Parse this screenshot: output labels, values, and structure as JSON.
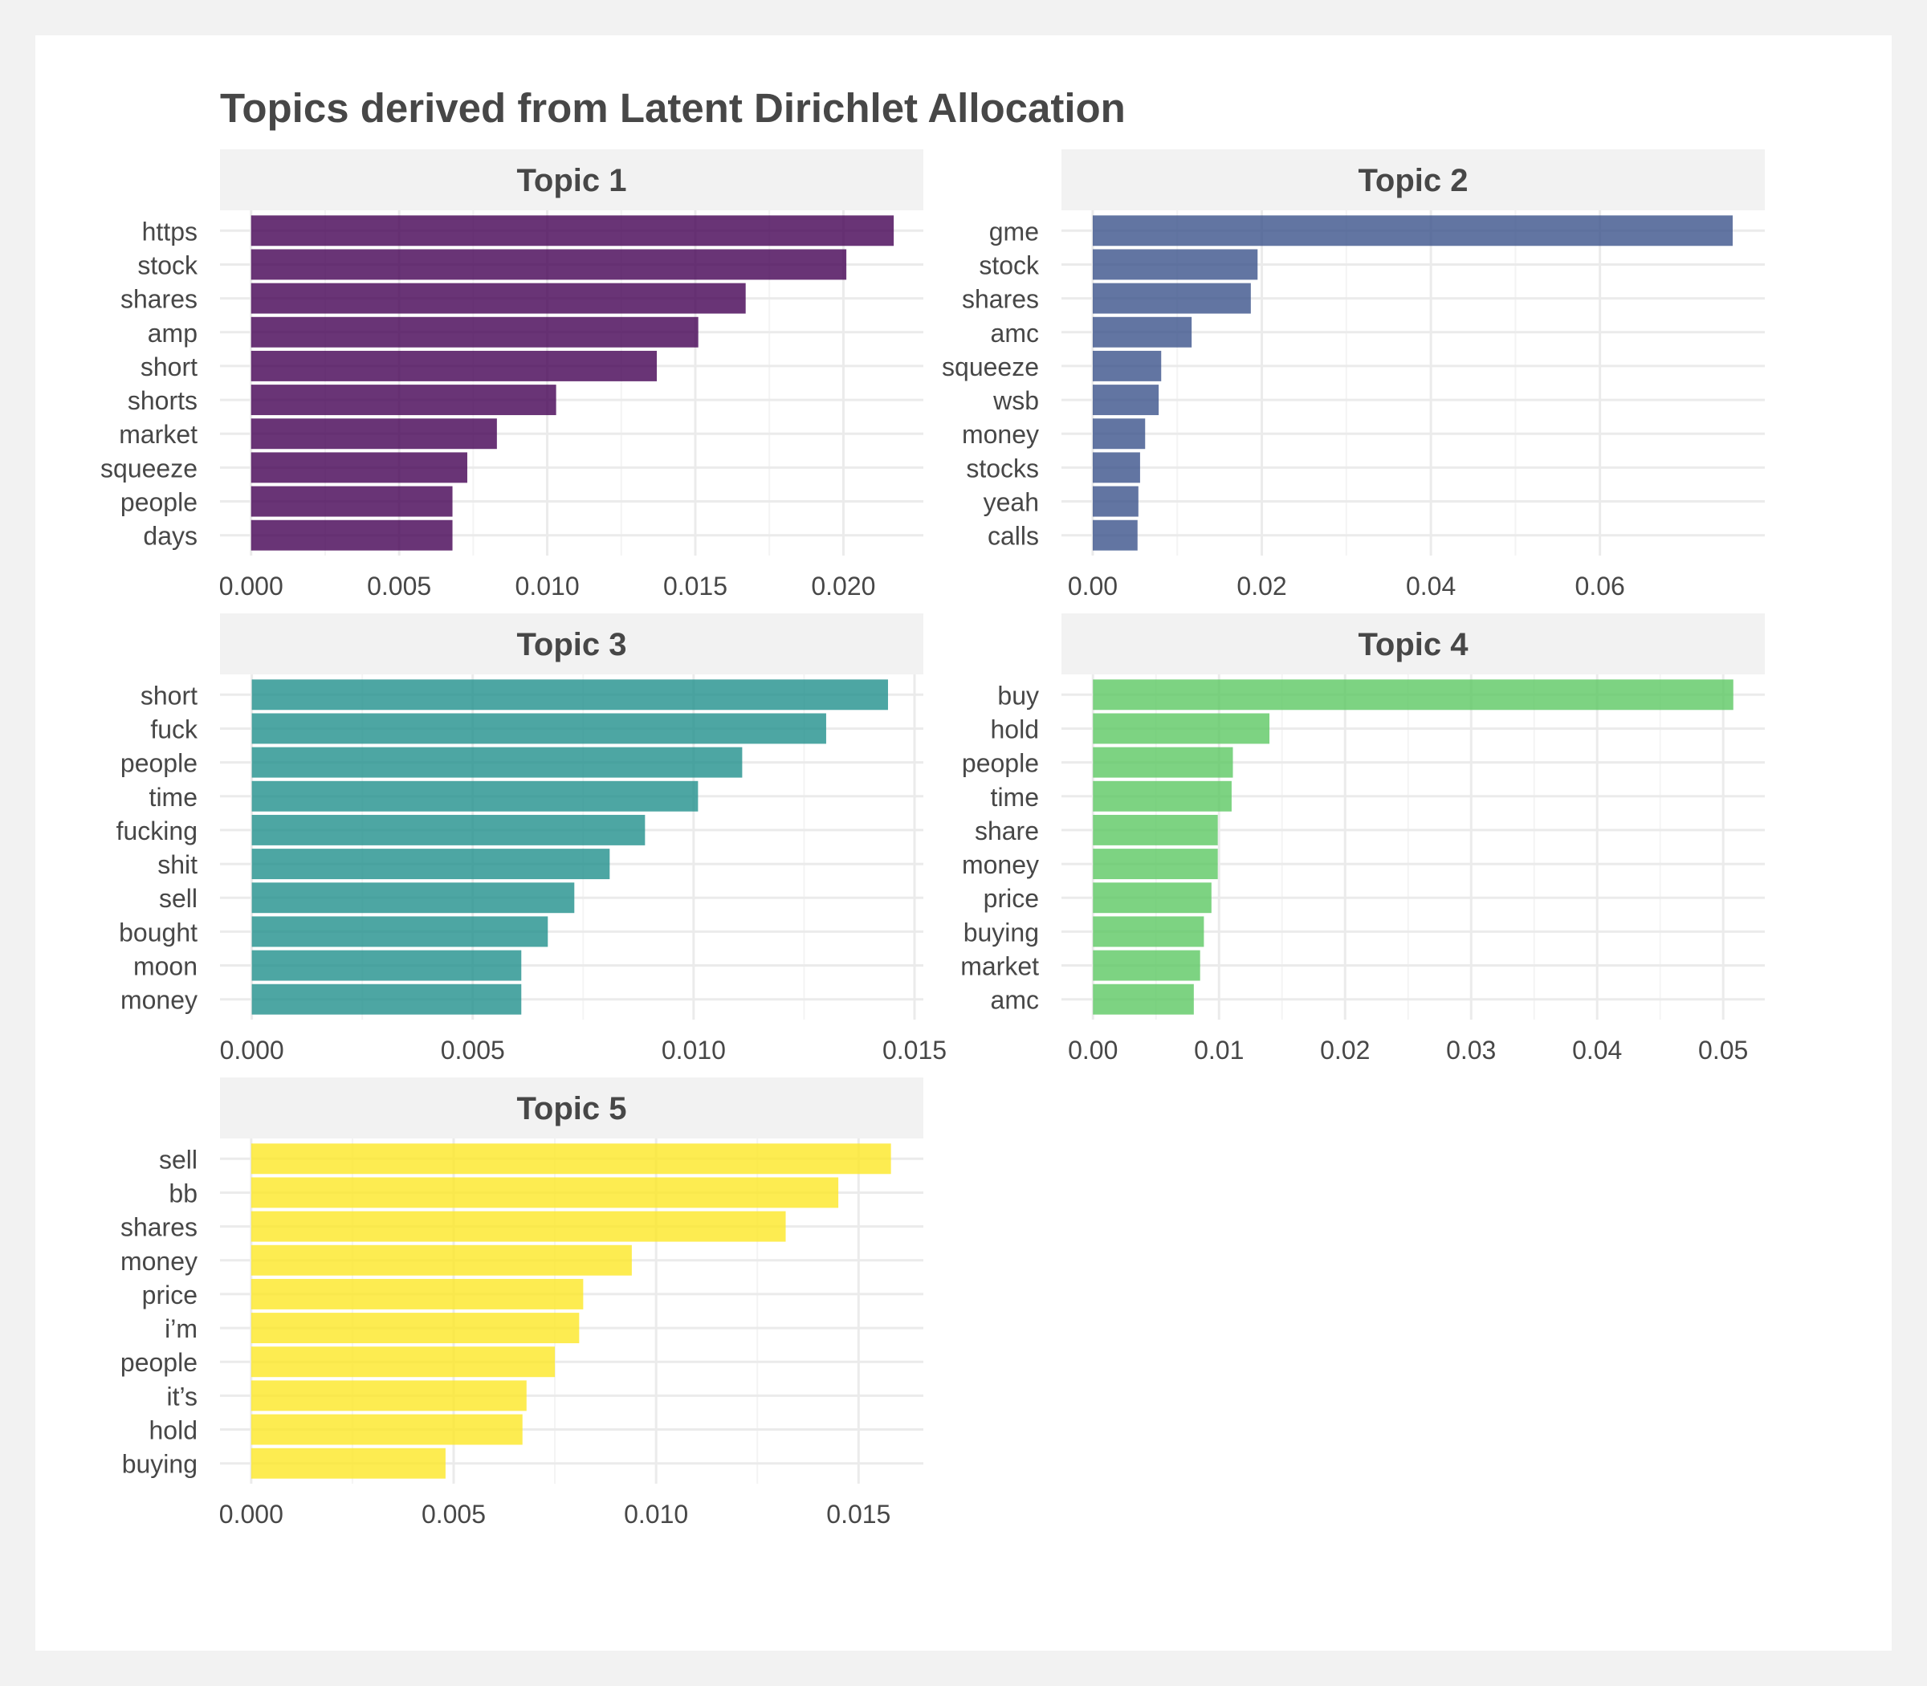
{
  "chart_data": {
    "type": "bar",
    "orientation": "horizontal",
    "title": "Topics derived from Latent Dirichlet Allocation",
    "grid": true,
    "panels": [
      {
        "name": "Topic 1",
        "color": "#440154",
        "categories": [
          "https",
          "stock",
          "shares",
          "amp",
          "short",
          "shorts",
          "market",
          "squeeze",
          "people",
          "days"
        ],
        "values": [
          0.0217,
          0.0201,
          0.0167,
          0.0151,
          0.0137,
          0.0103,
          0.0083,
          0.0073,
          0.0068,
          0.0068
        ],
        "xlim": [
          -0.00105,
          0.0227
        ],
        "xticks": [
          0.0,
          0.005,
          0.01,
          0.015,
          0.02
        ],
        "xtick_labels": [
          "0.000",
          "0.005",
          "0.010",
          "0.015",
          "0.020"
        ]
      },
      {
        "name": "Topic 2",
        "color": "#3B528B",
        "categories": [
          "gme",
          "stock",
          "shares",
          "amc",
          "squeeze",
          "wsb",
          "money",
          "stocks",
          "yeah",
          "calls"
        ],
        "values": [
          0.0757,
          0.0195,
          0.0187,
          0.0117,
          0.0081,
          0.0078,
          0.0062,
          0.0056,
          0.0054,
          0.0053
        ],
        "xlim": [
          -0.0037,
          0.0795
        ],
        "xticks": [
          0.0,
          0.02,
          0.04,
          0.06
        ],
        "xtick_labels": [
          "0.00",
          "0.02",
          "0.04",
          "0.06"
        ]
      },
      {
        "name": "Topic 3",
        "color": "#21908C",
        "categories": [
          "short",
          "fuck",
          "people",
          "time",
          "fucking",
          "shit",
          "sell",
          "bought",
          "moon",
          "money"
        ],
        "values": [
          0.0144,
          0.013,
          0.0111,
          0.0101,
          0.0089,
          0.0081,
          0.0073,
          0.0067,
          0.0061,
          0.0061
        ],
        "xlim": [
          -0.00072,
          0.0152
        ],
        "xticks": [
          0.0,
          0.005,
          0.01,
          0.015
        ],
        "xtick_labels": [
          "0.000",
          "0.005",
          "0.010",
          "0.015"
        ]
      },
      {
        "name": "Topic 4",
        "color": "#5DC863",
        "categories": [
          "buy",
          "hold",
          "people",
          "time",
          "share",
          "money",
          "price",
          "buying",
          "market",
          "amc"
        ],
        "values": [
          0.0508,
          0.014,
          0.0111,
          0.011,
          0.0099,
          0.0099,
          0.0094,
          0.0088,
          0.0085,
          0.008
        ],
        "xlim": [
          -0.0025,
          0.0533
        ],
        "xticks": [
          0.0,
          0.01,
          0.02,
          0.03,
          0.04,
          0.05
        ],
        "xtick_labels": [
          "0.00",
          "0.01",
          "0.02",
          "0.03",
          "0.04",
          "0.05"
        ]
      },
      {
        "name": "Topic 5",
        "color": "#FDE725",
        "categories": [
          "sell",
          "bb",
          "shares",
          "money",
          "price",
          "i’m",
          "people",
          "it’s",
          "hold",
          "buying"
        ],
        "values": [
          0.0158,
          0.0145,
          0.0132,
          0.0094,
          0.0082,
          0.0081,
          0.0075,
          0.0068,
          0.0067,
          0.0048
        ],
        "xlim": [
          -0.00077,
          0.0166
        ],
        "xticks": [
          0.0,
          0.005,
          0.01,
          0.015
        ],
        "xtick_labels": [
          "0.000",
          "0.005",
          "0.010",
          "0.015"
        ]
      }
    ]
  }
}
